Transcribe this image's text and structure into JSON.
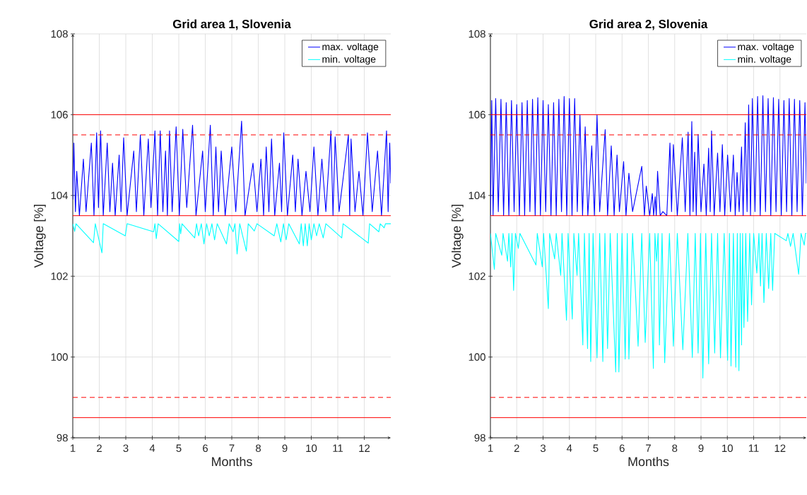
{
  "chart_data": [
    {
      "type": "line",
      "title": "Grid area 1, Slovenia",
      "xlabel": "Months",
      "ylabel": "Voltage [%]",
      "xlim": [
        1,
        13
      ],
      "xticks": [
        1,
        2,
        3,
        4,
        5,
        6,
        7,
        8,
        9,
        10,
        11,
        12
      ],
      "ylim": [
        98,
        108
      ],
      "yticks": [
        98,
        100,
        102,
        104,
        106,
        108
      ],
      "grid": true,
      "legend": "top right",
      "line_style": "solid",
      "marker": "none",
      "series": [
        {
          "name": "max. voltage",
          "color": "#0000ff",
          "x": [
            1.0,
            1.04,
            1.1,
            1.15,
            1.25,
            1.4,
            1.5,
            1.7,
            1.8,
            1.9,
            1.97,
            2.05,
            2.15,
            2.3,
            2.4,
            2.5,
            2.6,
            2.75,
            2.82,
            2.92,
            3.05,
            3.3,
            3.4,
            3.55,
            3.68,
            3.85,
            3.95,
            4.1,
            4.2,
            4.3,
            4.4,
            4.5,
            4.57,
            4.65,
            4.75,
            4.9,
            5.02,
            5.15,
            5.3,
            5.52,
            5.65,
            5.9,
            6.0,
            6.19,
            6.3,
            6.4,
            6.5,
            6.6,
            6.75,
            7.0,
            7.15,
            7.37,
            7.5,
            7.8,
            7.95,
            8.1,
            8.2,
            8.3,
            8.4,
            8.5,
            8.62,
            8.8,
            8.88,
            8.96,
            9.1,
            9.3,
            9.4,
            9.5,
            9.65,
            9.8,
            9.95,
            10.1,
            10.25,
            10.4,
            10.55,
            10.74,
            10.82,
            10.9,
            11.05,
            11.4,
            11.45,
            11.5,
            11.65,
            11.8,
            11.95,
            12.12,
            12.3,
            12.5,
            12.65,
            12.84,
            12.9,
            12.96,
            13.0
          ],
          "values": [
            103.9,
            105.3,
            103.6,
            104.6,
            103.5,
            104.9,
            103.6,
            105.3,
            103.5,
            105.55,
            103.7,
            105.6,
            103.5,
            105.3,
            103.6,
            104.8,
            103.5,
            105.0,
            103.6,
            105.43,
            103.5,
            105.1,
            103.6,
            105.5,
            103.5,
            105.4,
            103.7,
            105.6,
            103.5,
            105.6,
            103.6,
            105.1,
            103.5,
            105.6,
            103.6,
            105.7,
            103.5,
            105.64,
            103.7,
            105.74,
            103.5,
            105.1,
            103.6,
            105.74,
            103.5,
            105.2,
            103.6,
            105.1,
            103.5,
            105.2,
            103.6,
            105.84,
            103.5,
            104.8,
            103.6,
            104.9,
            103.5,
            105.2,
            103.6,
            105.4,
            103.5,
            104.8,
            103.6,
            105.55,
            103.5,
            105.0,
            103.6,
            104.9,
            103.5,
            104.6,
            103.6,
            105.2,
            103.5,
            104.9,
            103.6,
            105.6,
            103.5,
            105.45,
            103.6,
            105.5,
            103.5,
            105.4,
            103.6,
            104.6,
            103.5,
            105.55,
            103.6,
            105.1,
            103.5,
            105.6,
            103.6,
            105.3,
            104.3
          ]
        },
        {
          "name": "min. voltage",
          "color": "#00ffff",
          "x": [
            1.0,
            1.07,
            1.12,
            1.78,
            1.85,
            2.1,
            2.15,
            2.98,
            3.05,
            4.05,
            4.1,
            4.15,
            4.22,
            5.0,
            5.03,
            5.07,
            5.12,
            5.6,
            5.67,
            5.75,
            5.85,
            5.95,
            6.05,
            6.15,
            6.25,
            6.35,
            6.45,
            6.8,
            6.9,
            7.05,
            7.12,
            7.2,
            7.3,
            7.55,
            7.62,
            7.85,
            7.95,
            8.6,
            8.7,
            8.85,
            8.95,
            9.05,
            9.15,
            9.55,
            9.62,
            9.7,
            9.77,
            9.85,
            9.92,
            10.0,
            10.1,
            10.2,
            10.3,
            10.45,
            10.55,
            11.15,
            11.2,
            12.15,
            12.2,
            12.55,
            12.6,
            12.75,
            12.8,
            13.0
          ],
          "values": [
            103.3,
            103.11,
            103.3,
            102.83,
            103.3,
            102.58,
            103.3,
            103.0,
            103.3,
            103.1,
            103.3,
            102.93,
            103.3,
            102.86,
            103.3,
            103.05,
            103.3,
            102.95,
            103.3,
            103.0,
            103.3,
            102.8,
            103.3,
            103.0,
            103.3,
            102.9,
            103.3,
            102.8,
            103.3,
            103.1,
            103.3,
            102.55,
            103.3,
            102.62,
            103.3,
            103.12,
            103.3,
            103.0,
            103.3,
            102.85,
            103.3,
            102.9,
            103.3,
            102.8,
            103.3,
            102.75,
            103.3,
            102.75,
            103.3,
            102.9,
            103.3,
            103.0,
            103.3,
            102.95,
            103.3,
            102.95,
            103.3,
            102.82,
            103.3,
            103.1,
            103.3,
            103.2,
            103.3,
            103.3
          ]
        }
      ],
      "ref_lines": [
        {
          "axis": "y",
          "value": 106,
          "color": "#ff0000",
          "line_style": "solid"
        },
        {
          "axis": "y",
          "value": 105.5,
          "color": "#ff0000",
          "line_style": "dashed"
        },
        {
          "axis": "y",
          "value": 103.5,
          "color": "#ff0000",
          "line_style": "solid"
        },
        {
          "axis": "y",
          "value": 99,
          "color": "#ff0000",
          "line_style": "dashed"
        },
        {
          "axis": "y",
          "value": 98.5,
          "color": "#ff0000",
          "line_style": "solid"
        }
      ]
    },
    {
      "type": "line",
      "title": "Grid area 2, Slovenia",
      "xlabel": "Months",
      "ylabel": "Voltage [%]",
      "xlim": [
        1,
        13
      ],
      "xticks": [
        1,
        2,
        3,
        4,
        5,
        6,
        7,
        8,
        9,
        10,
        11,
        12
      ],
      "ylim": [
        98,
        108
      ],
      "yticks": [
        98,
        100,
        102,
        104,
        106,
        108
      ],
      "grid": true,
      "legend": "top right",
      "line_style": "solid",
      "marker": "none",
      "series": [
        {
          "name": "max. voltage",
          "color": "#0000ff",
          "x": [
            1.0,
            1.05,
            1.1,
            1.2,
            1.3,
            1.4,
            1.5,
            1.6,
            1.7,
            1.8,
            1.9,
            2.0,
            2.1,
            2.2,
            2.3,
            2.4,
            2.5,
            2.6,
            2.7,
            2.8,
            2.9,
            3.0,
            3.1,
            3.2,
            3.3,
            3.4,
            3.5,
            3.6,
            3.7,
            3.8,
            3.9,
            4.0,
            4.1,
            4.2,
            4.3,
            4.4,
            4.5,
            4.6,
            4.7,
            4.85,
            4.95,
            5.05,
            5.15,
            5.36,
            5.45,
            5.59,
            5.7,
            5.81,
            5.9,
            6.06,
            6.15,
            6.26,
            6.4,
            6.75,
            6.85,
            6.92,
            7.05,
            7.15,
            7.2,
            7.26,
            7.3,
            7.35,
            7.45,
            7.55,
            7.7,
            7.82,
            7.88,
            7.95,
            8.1,
            8.29,
            8.4,
            8.51,
            8.58,
            8.65,
            8.7,
            8.76,
            8.82,
            8.89,
            9.0,
            9.11,
            9.2,
            9.29,
            9.35,
            9.4,
            9.5,
            9.63,
            9.72,
            9.81,
            9.9,
            10.01,
            10.12,
            10.23,
            10.3,
            10.37,
            10.45,
            10.54,
            10.6,
            10.68,
            10.75,
            10.81,
            10.88,
            10.95,
            11.05,
            11.15,
            11.25,
            11.35,
            11.45,
            11.55,
            11.65,
            11.75,
            11.85,
            11.95,
            12.05,
            12.15,
            12.25,
            12.35,
            12.45,
            12.55,
            12.65,
            12.75,
            12.85,
            12.95,
            13.0
          ],
          "values": [
            103.5,
            106.35,
            103.5,
            106.4,
            103.6,
            106.38,
            103.5,
            106.3,
            103.5,
            106.35,
            103.6,
            106.25,
            103.5,
            106.3,
            103.5,
            106.35,
            103.6,
            106.38,
            103.5,
            106.42,
            103.5,
            106.35,
            103.6,
            106.25,
            103.5,
            106.3,
            103.5,
            106.38,
            103.6,
            106.45,
            103.5,
            106.4,
            103.5,
            106.4,
            103.6,
            106.0,
            103.5,
            105.7,
            103.5,
            105.23,
            103.5,
            106.0,
            103.6,
            105.63,
            103.5,
            105.23,
            103.5,
            105.0,
            103.6,
            104.84,
            103.5,
            104.55,
            103.6,
            104.72,
            103.5,
            104.23,
            103.5,
            104.05,
            103.5,
            103.97,
            103.5,
            104.6,
            103.5,
            103.6,
            103.5,
            105.3,
            103.6,
            105.26,
            103.5,
            105.43,
            103.6,
            105.57,
            103.5,
            105.83,
            103.6,
            105.07,
            103.5,
            105.51,
            103.6,
            104.78,
            103.5,
            105.17,
            103.6,
            105.6,
            103.5,
            105.05,
            103.6,
            105.26,
            103.5,
            105.0,
            103.6,
            105.0,
            103.5,
            104.57,
            103.6,
            105.2,
            103.5,
            105.8,
            103.6,
            106.24,
            103.5,
            106.4,
            103.6,
            106.45,
            103.5,
            106.47,
            103.6,
            106.4,
            103.5,
            106.42,
            103.6,
            106.38,
            103.5,
            106.35,
            103.6,
            106.4,
            103.5,
            106.38,
            103.6,
            106.35,
            103.5,
            106.3,
            104.3
          ]
        },
        {
          "name": "min. voltage",
          "color": "#00ffff",
          "x": [
            1.0,
            1.15,
            1.2,
            1.43,
            1.48,
            1.65,
            1.7,
            1.77,
            1.82,
            1.88,
            1.95,
            2.06,
            2.12,
            2.73,
            2.78,
            2.97,
            3.02,
            3.2,
            3.25,
            3.44,
            3.5,
            3.67,
            3.72,
            3.89,
            3.95,
            4.11,
            4.17,
            4.29,
            4.35,
            4.51,
            4.57,
            4.69,
            4.75,
            4.81,
            4.9,
            5.05,
            5.15,
            5.27,
            5.35,
            5.45,
            5.55,
            5.76,
            5.82,
            5.88,
            6.0,
            6.12,
            6.2,
            6.26,
            6.4,
            6.61,
            6.75,
            6.88,
            7.05,
            7.19,
            7.25,
            7.31,
            7.37,
            7.42,
            7.52,
            7.62,
            7.8,
            7.95,
            8.1,
            8.31,
            8.5,
            8.67,
            8.78,
            8.89,
            8.98,
            9.07,
            9.18,
            9.29,
            9.4,
            9.52,
            9.63,
            9.74,
            9.88,
            10.01,
            10.08,
            10.14,
            10.23,
            10.32,
            10.38,
            10.44,
            10.49,
            10.54,
            10.58,
            10.63,
            10.7,
            10.77,
            10.85,
            10.92,
            11.0,
            11.12,
            11.2,
            11.26,
            11.32,
            11.39,
            11.48,
            11.57,
            11.65,
            11.72,
            11.8,
            12.24,
            12.3,
            12.4,
            12.5,
            12.71,
            12.8,
            12.92,
            12.97,
            13.0
          ],
          "values": [
            103.06,
            102.17,
            103.06,
            102.52,
            103.06,
            102.37,
            103.06,
            102.23,
            103.06,
            101.65,
            103.06,
            102.69,
            103.06,
            102.28,
            103.06,
            102.23,
            103.06,
            101.2,
            103.06,
            102.43,
            103.06,
            102.02,
            103.06,
            100.91,
            103.06,
            100.94,
            103.06,
            102.02,
            103.06,
            100.3,
            103.06,
            100.21,
            103.06,
            99.89,
            103.06,
            99.98,
            103.06,
            99.89,
            103.06,
            100.21,
            103.06,
            99.63,
            103.06,
            99.63,
            103.06,
            99.95,
            103.06,
            99.95,
            103.06,
            100.27,
            103.06,
            100.36,
            103.06,
            99.72,
            103.06,
            102.37,
            103.06,
            100.3,
            103.06,
            99.86,
            103.06,
            100.27,
            103.06,
            100.18,
            103.06,
            99.99,
            103.06,
            100.1,
            103.06,
            99.48,
            103.06,
            99.83,
            103.06,
            100.1,
            103.06,
            99.98,
            103.06,
            99.92,
            103.06,
            99.78,
            103.06,
            99.75,
            103.06,
            99.66,
            103.06,
            100.3,
            103.06,
            100.73,
            103.06,
            100.88,
            103.06,
            101.29,
            103.06,
            102.08,
            103.06,
            101.76,
            103.06,
            101.35,
            103.06,
            101.7,
            103.06,
            101.65,
            103.06,
            102.88,
            103.06,
            102.74,
            103.06,
            102.05,
            103.06,
            102.77,
            103.06,
            103.06
          ]
        }
      ],
      "ref_lines": [
        {
          "axis": "y",
          "value": 106,
          "color": "#ff0000",
          "line_style": "solid"
        },
        {
          "axis": "y",
          "value": 105.5,
          "color": "#ff0000",
          "line_style": "dashed"
        },
        {
          "axis": "y",
          "value": 103.5,
          "color": "#ff0000",
          "line_style": "solid"
        },
        {
          "axis": "y",
          "value": 99,
          "color": "#ff0000",
          "line_style": "dashed"
        },
        {
          "axis": "y",
          "value": 98.5,
          "color": "#ff0000",
          "line_style": "solid"
        }
      ]
    }
  ]
}
